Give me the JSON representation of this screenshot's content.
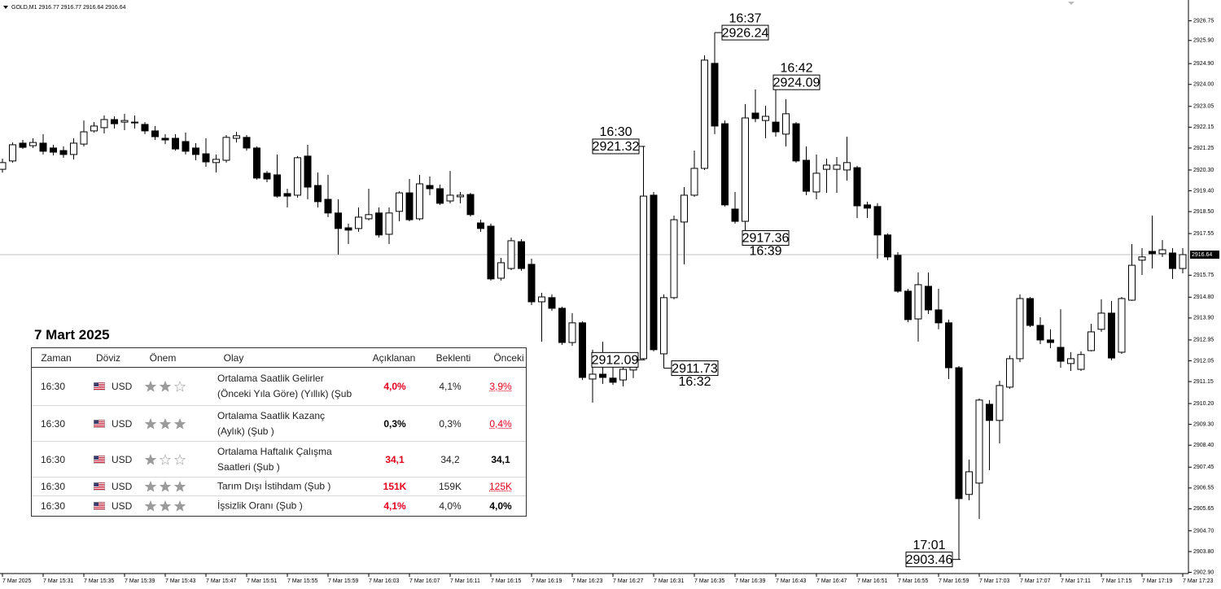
{
  "chart_data": {
    "type": "candlestick",
    "title": "GOLD,M1 2916.77 2916.77 2916.64 2916.64",
    "categories": [
      "7 Mar 2025",
      null,
      null,
      null,
      "7 Mar 15:31",
      null,
      null,
      null,
      "7 Mar 15:35",
      null,
      null,
      null,
      "7 Mar 15:39",
      null,
      null,
      null,
      "7 Mar 15:43",
      null,
      null,
      null,
      "7 Mar 15:47",
      null,
      null,
      null,
      "7 Mar 15:51",
      null,
      null,
      null,
      "7 Mar 15:55",
      null,
      null,
      null,
      "7 Mar 15:59",
      null,
      null,
      null,
      "7 Mar 16:03",
      null,
      null,
      null,
      "7 Mar 16:07",
      null,
      null,
      null,
      "7 Mar 16:11",
      null,
      null,
      null,
      "7 Mar 16:15",
      null,
      null,
      null,
      "7 Mar 16:19",
      null,
      null,
      null,
      "7 Mar 16:23",
      null,
      null,
      null,
      "7 Mar 16:27",
      null,
      null,
      null,
      "7 Mar 16:31",
      null,
      null,
      null,
      "7 Mar 16:35",
      null,
      null,
      null,
      "7 Mar 16:39",
      null,
      null,
      null,
      "7 Mar 16:43",
      null,
      null,
      null,
      "7 Mar 16:47",
      null,
      null,
      null,
      "7 Mar 16:51",
      null,
      null,
      null,
      "7 Mar 16:55",
      null,
      null,
      null,
      "7 Mar 16:59",
      null,
      null,
      null,
      "7 Mar 17:03",
      null,
      null,
      null,
      "7 Mar 17:07",
      null,
      null,
      null,
      "7 Mar 17:11",
      null,
      null,
      null,
      "7 Mar 17:15",
      null,
      null,
      null,
      "7 Mar 17:19",
      null,
      null,
      null,
      "7 Mar 17:23"
    ],
    "open": [
      2920.33,
      2920.69,
      2921.46,
      2921.35,
      2921.46,
      2921.25,
      2921.14,
      2920.97,
      2921.42,
      2921.99,
      2922.13,
      2922.48,
      2922.37,
      2922.37,
      2922.27,
      2921.99,
      2921.67,
      2921.67,
      2921.53,
      2921.25,
      2921.0,
      2920.62,
      2920.72,
      2921.67,
      2921.71,
      2921.25,
      2920.16,
      2920.09,
      2919.28,
      2919.21,
      2920.9,
      2919.63,
      2919.03,
      2918.44,
      2917.8,
      2917.77,
      2918.19,
      2918.44,
      2917.52,
      2918.51,
      2919.31,
      2918.19,
      2919.63,
      2919.49,
      2918.96,
      2919.14,
      2919.24,
      2918.01,
      2917.87,
      2915.62,
      2916.04,
      2917.2,
      2916.22,
      2914.6,
      2914.78,
      2914.32,
      2912.84,
      2913.69,
      2911.26,
      2911.47,
      2911.3,
      2911.22,
      2911.65,
      2912.14,
      2919.21,
      2912.35,
      2914.78,
      2918.05,
      2919.21,
      2920.37,
      2924.91,
      2922.3,
      2918.61,
      2918.08,
      2922.76,
      2922.44,
      2922.37,
      2921.85,
      2922.3,
      2920.72,
      2919.35,
      2920.33,
      2920.33,
      2920.3,
      2920.4,
      2918.79,
      2918.72,
      2917.49,
      2916.61,
      2915.06,
      2913.86,
      2915.27,
      2914.25,
      2913.69,
      2911.75,
      2906.27,
      2906.76,
      2910.17,
      2909.47,
      2910.91,
      2912.14,
      2914.74,
      2913.58,
      2912.95,
      2912.63,
      2911.93,
      2911.68,
      2912.49,
      2913.41,
      2914.11,
      2912.42,
      2914.67,
      2916.4,
      2916.78,
      2916.68,
      2916.71,
      2916.04
    ],
    "high": [
      2920.79,
      2921.49,
      2921.6,
      2921.67,
      2921.85,
      2921.39,
      2921.32,
      2921.67,
      2922.44,
      2922.37,
      2922.66,
      2922.62,
      2922.73,
      2922.66,
      2922.37,
      2922.2,
      2921.85,
      2921.85,
      2921.92,
      2921.46,
      2921.67,
      2920.97,
      2921.81,
      2921.95,
      2921.81,
      2921.32,
      2920.26,
      2920.97,
      2919.49,
      2920.9,
      2921.39,
      2920.19,
      2920.09,
      2919.03,
      2917.98,
      2918.68,
      2919.49,
      2918.68,
      2918.68,
      2919.38,
      2919.91,
      2920.09,
      2920.02,
      2919.67,
      2920.26,
      2919.35,
      2919.31,
      2918.15,
      2917.98,
      2916.5,
      2917.38,
      2917.31,
      2916.47,
      2914.99,
      2914.92,
      2914.39,
      2914.11,
      2913.76,
      2912.53,
      2912.88,
      2911.82,
      2912.0,
      2912.42,
      2921.32,
      2919.35,
      2914.92,
      2918.33,
      2919.56,
      2921.14,
      2925.26,
      2926.24,
      2922.44,
      2919.35,
      2923.15,
      2923.78,
      2923.08,
      2924.09,
      2923.36,
      2922.37,
      2921.32,
      2920.97,
      2920.79,
      2920.86,
      2921.74,
      2920.48,
      2918.93,
      2918.86,
      2917.56,
      2916.75,
      2915.16,
      2915.87,
      2915.87,
      2915.16,
      2913.83,
      2911.82,
      2907.78,
      2910.42,
      2910.35,
      2911.19,
      2912.28,
      2914.92,
      2914.81,
      2913.93,
      2913.41,
      2914.28,
      2912.42,
      2912.46,
      2913.65,
      2914.71,
      2914.64,
      2914.81,
      2917.1,
      2916.92,
      2918.33,
      2917.27,
      2916.92,
      2916.92
    ],
    "low": [
      2920.19,
      2920.62,
      2921.21,
      2921.25,
      2920.97,
      2920.93,
      2920.83,
      2920.76,
      2921.32,
      2921.92,
      2921.88,
      2922.09,
      2922.02,
      2922.09,
      2921.85,
      2921.6,
      2921.42,
      2921.14,
      2920.97,
      2920.72,
      2920.44,
      2920.19,
      2920.62,
      2921.49,
      2921.14,
      2919.88,
      2919.77,
      2919.1,
      2918.68,
      2919.1,
      2919.03,
      2918.68,
      2918.26,
      2916.64,
      2917.1,
      2917.63,
      2918.12,
      2917.38,
      2917.1,
      2918.08,
      2918.08,
      2918.12,
      2919.21,
      2918.79,
      2918.86,
      2918.86,
      2918.29,
      2917.63,
      2915.52,
      2915.52,
      2915.97,
      2915.94,
      2914.46,
      2912.88,
      2914.21,
      2912.74,
      2912.7,
      2911.22,
      2910.24,
      2911.05,
      2911.01,
      2910.94,
      2911.3,
      2912.09,
      2912.46,
      2911.73,
      2914.71,
      2916.22,
      2919.14,
      2920.3,
      2921.85,
      2918.72,
      2917.98,
      2917.36,
      2922.37,
      2921.67,
      2921.74,
      2921.32,
      2920.62,
      2919.21,
      2919.03,
      2919.31,
      2919.31,
      2919.84,
      2918.22,
      2918.22,
      2916.47,
      2916.4,
      2914.99,
      2913.72,
      2912.88,
      2914.07,
      2913.41,
      2911.26,
      2903.46,
      2906.02,
      2905.21,
      2907.32,
      2908.48,
      2910.84,
      2911.99,
      2913.51,
      2912.77,
      2912.6,
      2911.75,
      2911.61,
      2911.61,
      2912.46,
      2913.3,
      2912.07,
      2912.35,
      2914.64,
      2915.76,
      2916.04,
      2916.54,
      2915.59,
      2915.83
    ],
    "close": [
      2920.62,
      2921.39,
      2921.28,
      2921.49,
      2921.11,
      2921.07,
      2920.97,
      2921.46,
      2921.95,
      2922.2,
      2922.48,
      2922.3,
      2922.44,
      2922.37,
      2921.99,
      2921.74,
      2921.6,
      2921.21,
      2921.11,
      2920.97,
      2920.65,
      2920.76,
      2921.71,
      2921.78,
      2921.25,
      2919.95,
      2919.91,
      2919.17,
      2919.17,
      2920.83,
      2919.56,
      2918.93,
      2918.44,
      2917.77,
      2917.7,
      2918.26,
      2918.37,
      2917.49,
      2918.44,
      2919.31,
      2918.15,
      2919.7,
      2919.49,
      2918.86,
      2919.21,
      2919.21,
      2918.37,
      2917.77,
      2915.59,
      2916.29,
      2917.24,
      2916.04,
      2914.6,
      2914.81,
      2914.32,
      2912.84,
      2913.69,
      2911.33,
      2911.47,
      2911.33,
      2911.12,
      2911.68,
      2912.17,
      2919.17,
      2912.53,
      2914.78,
      2918.15,
      2919.21,
      2920.37,
      2925.05,
      2922.2,
      2918.79,
      2918.08,
      2922.55,
      2922.52,
      2922.62,
      2921.95,
      2922.73,
      2920.69,
      2919.38,
      2920.16,
      2920.51,
      2920.51,
      2920.62,
      2918.75,
      2918.65,
      2917.49,
      2916.54,
      2915.06,
      2913.83,
      2915.34,
      2914.25,
      2913.69,
      2911.75,
      2906.09,
      2907.25,
      2910.35,
      2909.47,
      2910.98,
      2912.14,
      2914.74,
      2913.58,
      2912.95,
      2912.84,
      2912.03,
      2912.14,
      2912.32,
      2913.3,
      2914.11,
      2912.17,
      2914.74,
      2916.18,
      2916.54,
      2916.68,
      2916.85,
      2916.04,
      2916.64
    ],
    "up_color": "#ffffff",
    "down_color": "#000000",
    "current_price": 2916.64,
    "ylim": [
      2902.85,
      2927.65
    ],
    "yticks": [
      2926.75,
      {
        "value": 2925.9,
        "label": "2925.90"
      },
      {
        "value": 2924.9,
        "label": "2924.90"
      },
      {
        "value": 2924,
        "label": "2924.00"
      },
      2923.05,
      2922.15,
      2921.25,
      {
        "value": 2920.3,
        "label": "2920.30"
      },
      {
        "value": 2919.4,
        "label": "2919.40"
      },
      {
        "value": 2918.5,
        "label": "2918.50"
      },
      2917.55,
      2915.75,
      {
        "value": 2914.8,
        "label": "2914.80"
      },
      {
        "value": 2913.9,
        "label": "2913.90"
      },
      2912.95,
      2912.05,
      2911.15,
      {
        "value": 2910.2,
        "label": "2910.20"
      },
      {
        "value": 2909.3,
        "label": "2909.30"
      },
      {
        "value": 2908.4,
        "label": "2908.40"
      },
      2907.45,
      2906.55,
      2905.65,
      {
        "value": 2904.7,
        "label": "2904.70"
      },
      {
        "value": 2903.8,
        "label": "2903.80"
      },
      {
        "value": 2902.9,
        "label": "2902.90"
      }
    ],
    "grid": false,
    "annotations": [
      {
        "time": "16:30",
        "price": 2921.32
      },
      {
        "price": 2912.09
      },
      {
        "time": "16:32",
        "price": 2911.73
      },
      {
        "time": "16:37",
        "price": 2926.24
      },
      {
        "time": "16:39",
        "price": 2917.36
      },
      {
        "time": "16:42",
        "price": 2924.09
      },
      {
        "time": "17:01",
        "price": 2903.46
      }
    ]
  },
  "calendar": {
    "title": "7 Mart 2025",
    "columns": [
      "Zaman",
      "Döviz",
      "Önem",
      "Olay",
      "Açıklanan",
      "Beklenti",
      "Önceki"
    ],
    "rows": [
      {
        "time": "16:30",
        "currency": "USD",
        "importance": 2,
        "event": [
          "Ortalama Saatlik Gelirler",
          "(Önceki Yıla Göre) (Yıllık) (Şub"
        ],
        "actual": "4,0%",
        "actual_color": "#e3001b",
        "forecast": "4,1%",
        "previous": "3,9%",
        "previous_color": "#e3001b",
        "previous_revised": true
      },
      {
        "time": "16:30",
        "currency": "USD",
        "importance": 3,
        "event": [
          "Ortalama Saatlik Kazanç",
          "(Aylık) (Şub )"
        ],
        "actual": "0,3%",
        "actual_color": "#000000",
        "forecast": "0,3%",
        "previous": "0,4%",
        "previous_color": "#e3001b",
        "previous_revised": true
      },
      {
        "time": "16:30",
        "currency": "USD",
        "importance": 1,
        "event": [
          "Ortalama Haftalık Çalışma",
          "Saatleri (Şub )"
        ],
        "actual": "34,1",
        "actual_color": "#e3001b",
        "forecast": "34,2",
        "previous": "34,1",
        "previous_color": "#000000",
        "previous_revised": false
      },
      {
        "time": "16:30",
        "currency": "USD",
        "importance": 3,
        "event": [
          "Tarım Dışı İstihdam (Şub )"
        ],
        "actual": "151K",
        "actual_color": "#e3001b",
        "forecast": "159K",
        "previous": "125K",
        "previous_color": "#e3001b",
        "previous_revised": true
      },
      {
        "time": "16:30",
        "currency": "USD",
        "importance": 3,
        "event": [
          "İşsizlik Oranı (Şub )"
        ],
        "actual": "4,1%",
        "actual_color": "#e3001b",
        "forecast": "4,0%",
        "previous": "4,0%",
        "previous_color": "#000000",
        "previous_revised": false
      }
    ]
  }
}
